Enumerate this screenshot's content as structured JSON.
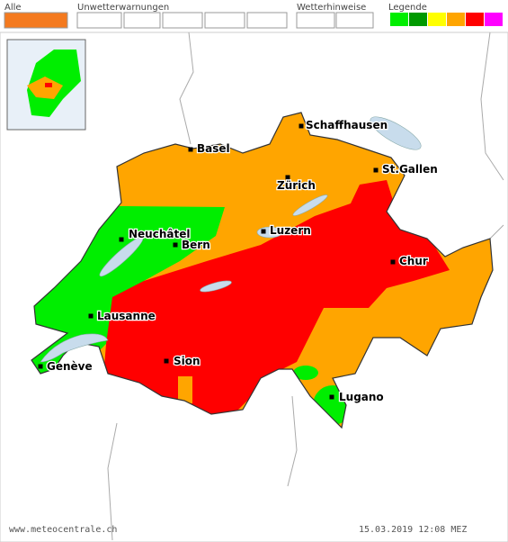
{
  "header": {
    "all": "Alle",
    "warnings": "Unwetterwarnungen",
    "hints": "Wetterhinweise",
    "legend": "Legende"
  },
  "cities": [
    {
      "label": "Schaffhausen"
    },
    {
      "label": "Basel"
    },
    {
      "label": "St.Gallen"
    },
    {
      "label": "Zürich"
    },
    {
      "label": "Neuchâtel"
    },
    {
      "label": "Bern"
    },
    {
      "label": "Luzern"
    },
    {
      "label": "Chur"
    },
    {
      "label": "Lausanne"
    },
    {
      "label": "Genève"
    },
    {
      "label": "Sion"
    },
    {
      "label": "Lugano"
    }
  ],
  "footer": {
    "source": "www.meteocentrale.ch",
    "timestamp": "15.03.2019 12:08 MEZ"
  }
}
